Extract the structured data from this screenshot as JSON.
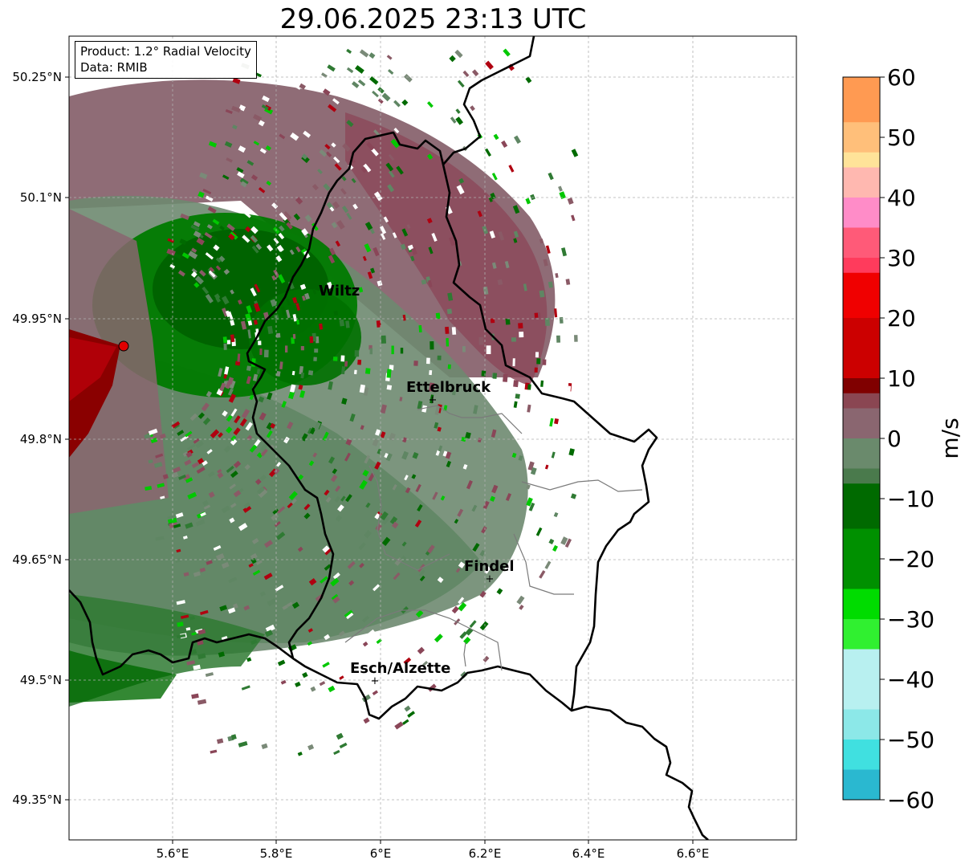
{
  "title": "29.06.2025 23:13 UTC",
  "info": {
    "product": "Product: 1.2° Radial Velocity",
    "source": "Data: RMIB"
  },
  "axes": {
    "lat_ticks": [
      "50.25°N",
      "50.1°N",
      "49.95°N",
      "49.8°N",
      "49.65°N",
      "49.5°N",
      "49.35°N"
    ],
    "lon_ticks": [
      "5.6°E",
      "5.8°E",
      "6°E",
      "6.2°E",
      "6.4°E",
      "6.6°E"
    ],
    "grid": true
  },
  "colorbar": {
    "label": "m/s",
    "ticks": [
      "60",
      "50",
      "40",
      "30",
      "20",
      "10",
      "0",
      "−10",
      "−20",
      "−30",
      "−40",
      "−50",
      "−60"
    ],
    "range": [
      -60,
      60
    ],
    "colors": {
      "pos_high": "#ff9a52",
      "pos_mid": "#ff3b5c",
      "pos_low": "#cc0000",
      "near_zero_pos": "#8a5060",
      "near_zero": "#7a8a78",
      "neg_low": "#006a00",
      "neg_mid": "#00cc00",
      "neg_high": "#2fd8d8",
      "neg_max": "#2180c8"
    }
  },
  "cities": [
    {
      "name": "Wiltz"
    },
    {
      "name": "Ettelbruck"
    },
    {
      "name": "Findel"
    },
    {
      "name": "Esch/Alzette"
    }
  ],
  "radar_site_color": "#e00000"
}
